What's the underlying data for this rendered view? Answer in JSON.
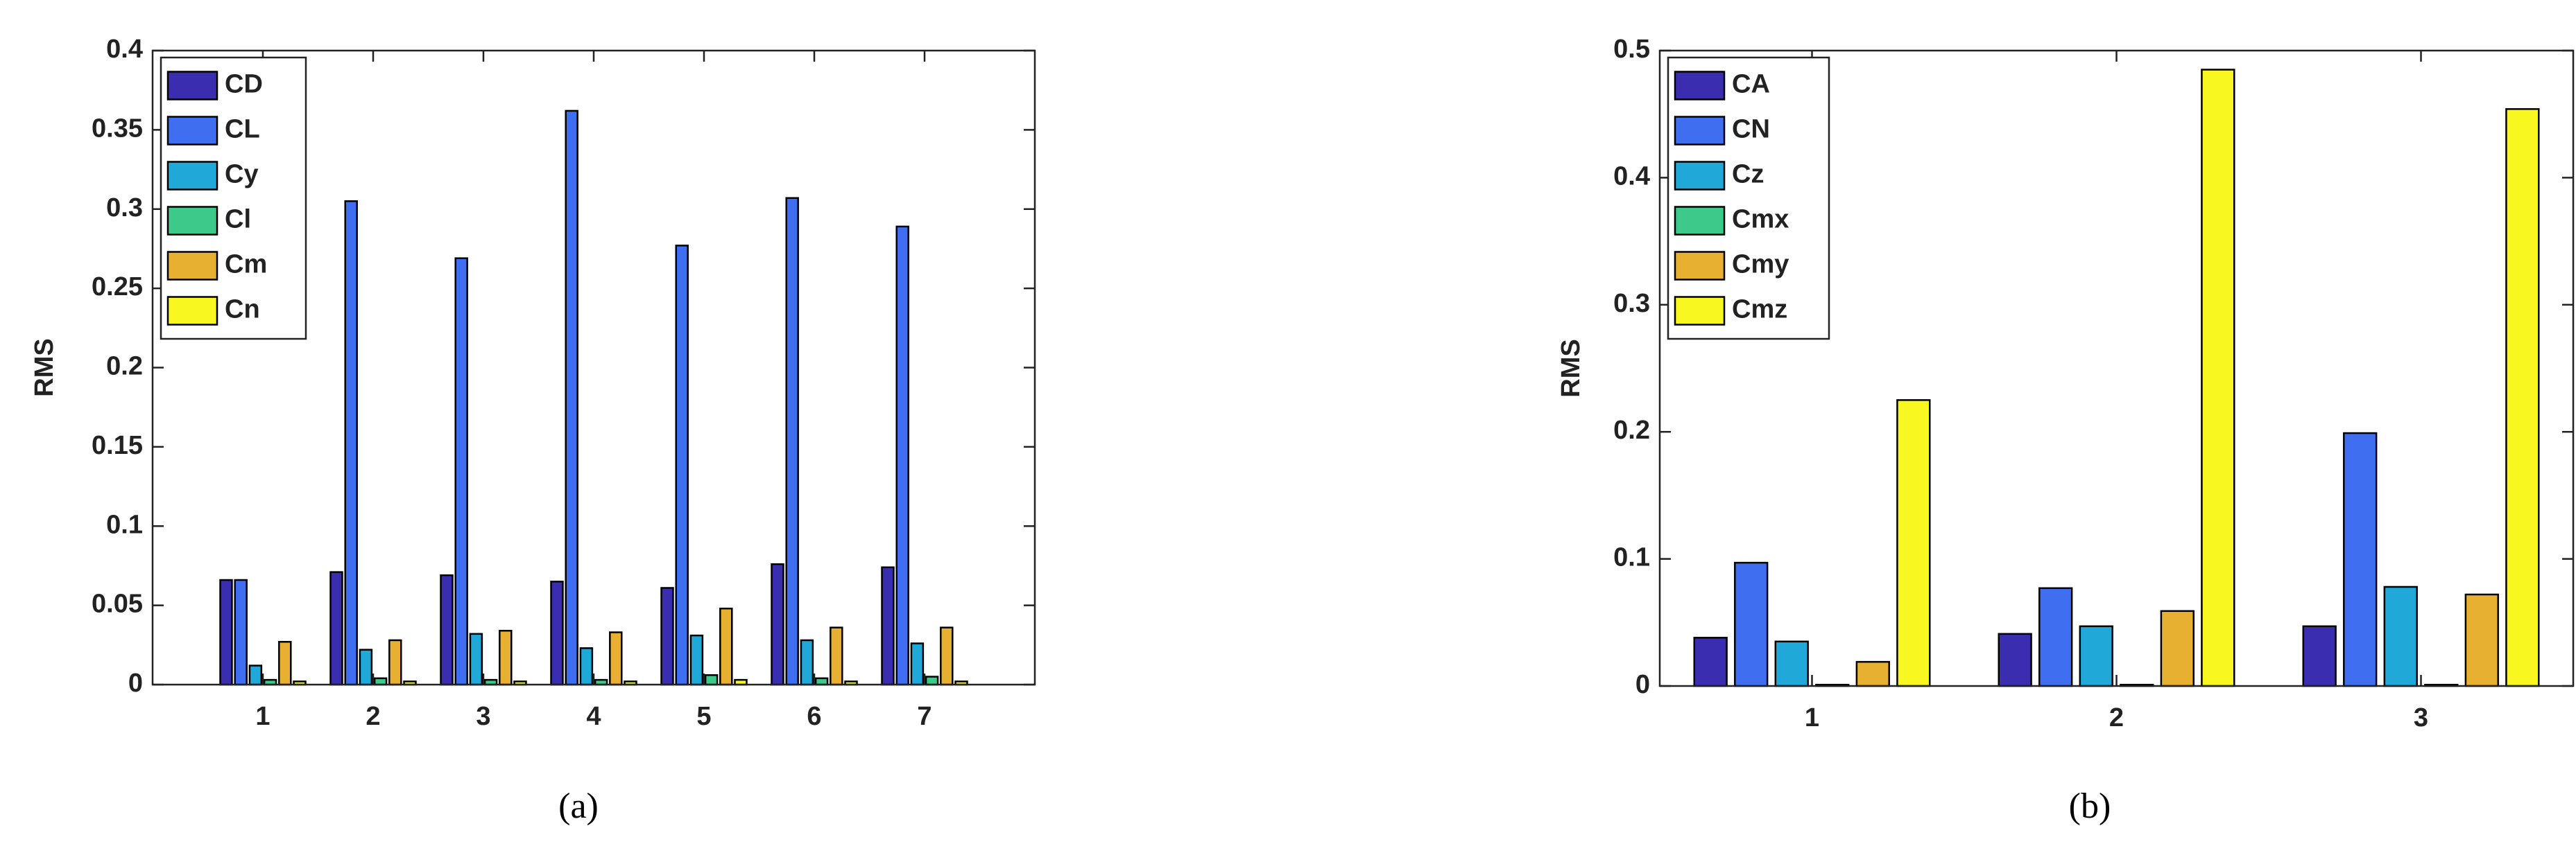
{
  "chart_data": [
    {
      "type": "bar",
      "ylabel": "RMS",
      "caption": "(a)",
      "categories": [
        "1",
        "2",
        "3",
        "4",
        "5",
        "6",
        "7"
      ],
      "series": [
        {
          "name": "CD",
          "color": "#3a2db0",
          "values": [
            0.066,
            0.071,
            0.069,
            0.065,
            0.061,
            0.076,
            0.074
          ]
        },
        {
          "name": "CL",
          "color": "#3f6ff0",
          "values": [
            0.066,
            0.305,
            0.269,
            0.362,
            0.277,
            0.307,
            0.289
          ]
        },
        {
          "name": "Cy",
          "color": "#20a8d8",
          "values": [
            0.012,
            0.022,
            0.032,
            0.023,
            0.031,
            0.028,
            0.026
          ]
        },
        {
          "name": "Cl",
          "color": "#3cc98a",
          "values": [
            0.003,
            0.004,
            0.003,
            0.003,
            0.006,
            0.004,
            0.005
          ]
        },
        {
          "name": "Cm",
          "color": "#e8b030",
          "values": [
            0.027,
            0.028,
            0.034,
            0.033,
            0.048,
            0.036,
            0.036
          ]
        },
        {
          "name": "Cn",
          "color": "#f8f820",
          "values": [
            0.002,
            0.002,
            0.002,
            0.002,
            0.003,
            0.002,
            0.002
          ]
        }
      ],
      "ylim": [
        0,
        0.4
      ],
      "yticks": [
        0,
        0.05,
        0.1,
        0.15,
        0.2,
        0.25,
        0.3,
        0.35,
        0.4
      ],
      "legend": "upper left"
    },
    {
      "type": "bar",
      "ylabel": "RMS",
      "caption": "(b)",
      "categories": [
        "1",
        "2",
        "3"
      ],
      "series": [
        {
          "name": "CA",
          "color": "#3a2db0",
          "values": [
            0.038,
            0.041,
            0.047
          ]
        },
        {
          "name": "CN",
          "color": "#3f6ff0",
          "values": [
            0.097,
            0.077,
            0.199
          ]
        },
        {
          "name": "Cz",
          "color": "#20a8d8",
          "values": [
            0.035,
            0.047,
            0.078
          ]
        },
        {
          "name": "Cmx",
          "color": "#3cc98a",
          "values": [
            0.001,
            0.001,
            0.001
          ]
        },
        {
          "name": "Cmy",
          "color": "#e8b030",
          "values": [
            0.019,
            0.059,
            0.072
          ]
        },
        {
          "name": "Cmz",
          "color": "#f8f820",
          "values": [
            0.225,
            0.485,
            0.454
          ]
        }
      ],
      "ylim": [
        0,
        0.5
      ],
      "yticks": [
        0,
        0.1,
        0.2,
        0.3,
        0.4,
        0.5
      ],
      "legend": "upper left"
    }
  ]
}
